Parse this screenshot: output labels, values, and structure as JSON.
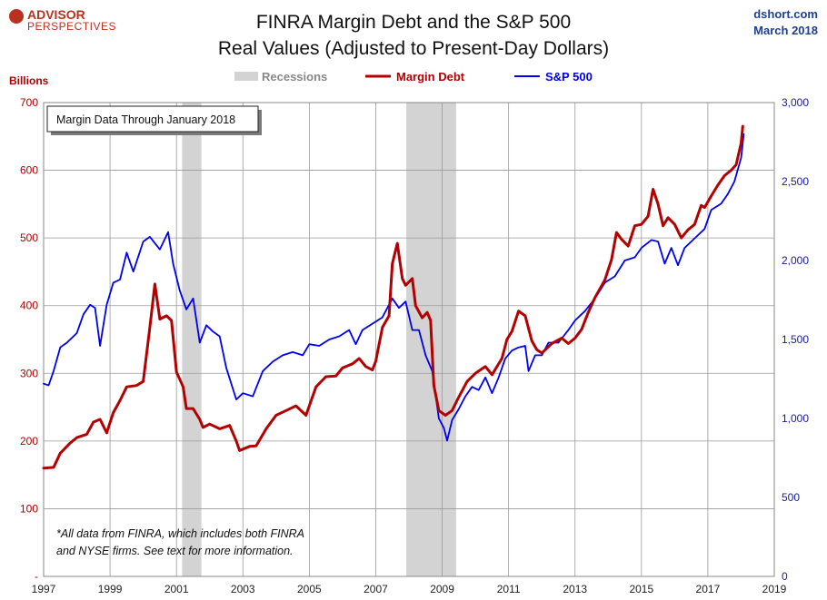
{
  "header": {
    "logo_line1": "ADVISOR",
    "logo_line2": "PERSPECTIVES",
    "title_line1": "FINRA Margin Debt and the S&P 500",
    "title_line2": "Real Values (Adjusted to Present-Day Dollars)",
    "source": "dshort.com",
    "date": "March 2018"
  },
  "legend": {
    "recessions": "Recessions",
    "margin_debt": "Margin Debt",
    "sp500": "S&P 500"
  },
  "annotations": {
    "box": "Margin Data Through January 2018",
    "footnote_line1": "*All data from FINRA, which includes both FINRA",
    "footnote_line2": "and NYSE firms. See text for more information."
  },
  "colors": {
    "margin_debt": "#b30000",
    "sp500": "#0000ee",
    "recession": "#d3d3d3",
    "grid": "#9a9a9a",
    "left_axis": "#b00000",
    "right_axis": "#1a1aa0"
  },
  "chart_data": {
    "type": "line",
    "title": "FINRA Margin Debt and the S&P 500",
    "subtitle": "Real Values (Adjusted to Present-Day Dollars)",
    "left_axis": {
      "label": "Billions",
      "ylim": [
        0,
        700
      ],
      "ticks": [
        0,
        100,
        200,
        300,
        400,
        500,
        600,
        700
      ],
      "tick_labels": [
        "-",
        "100",
        "200",
        "300",
        "400",
        "500",
        "600",
        "700"
      ]
    },
    "right_axis": {
      "ylim": [
        0,
        3000
      ],
      "ticks": [
        0,
        500,
        1000,
        1500,
        2000,
        2500,
        3000
      ],
      "tick_labels": [
        "0",
        "500",
        "1,000",
        "1,500",
        "2,000",
        "2,500",
        "3,000"
      ]
    },
    "x_axis": {
      "xlim": [
        1997.0,
        2019.0
      ],
      "ticks": [
        1997,
        1999,
        2001,
        2003,
        2005,
        2007,
        2009,
        2011,
        2013,
        2015,
        2017,
        2019
      ],
      "tick_labels": [
        "1997",
        "1999",
        "2001",
        "2003",
        "2005",
        "2007",
        "2009",
        "2011",
        "2013",
        "2015",
        "2017",
        "2019"
      ]
    },
    "grid": true,
    "legend_position": "top-center",
    "recessions": [
      [
        2001.17,
        2001.75
      ],
      [
        2007.92,
        2009.42
      ]
    ],
    "series": [
      {
        "name": "Margin Debt",
        "axis": "left",
        "points": [
          [
            1997.0,
            160
          ],
          [
            1997.3,
            161
          ],
          [
            1997.5,
            182
          ],
          [
            1997.8,
            197
          ],
          [
            1998.0,
            205
          ],
          [
            1998.3,
            210
          ],
          [
            1998.5,
            228
          ],
          [
            1998.7,
            232
          ],
          [
            1998.9,
            212
          ],
          [
            1999.1,
            242
          ],
          [
            1999.3,
            260
          ],
          [
            1999.5,
            280
          ],
          [
            1999.8,
            282
          ],
          [
            2000.0,
            288
          ],
          [
            2000.2,
            368
          ],
          [
            2000.35,
            432
          ],
          [
            2000.5,
            380
          ],
          [
            2000.7,
            385
          ],
          [
            2000.85,
            378
          ],
          [
            2001.0,
            302
          ],
          [
            2001.2,
            280
          ],
          [
            2001.3,
            248
          ],
          [
            2001.5,
            248
          ],
          [
            2001.7,
            232
          ],
          [
            2001.8,
            220
          ],
          [
            2002.0,
            225
          ],
          [
            2002.3,
            218
          ],
          [
            2002.6,
            223
          ],
          [
            2002.8,
            200
          ],
          [
            2002.9,
            186
          ],
          [
            2003.2,
            192
          ],
          [
            2003.4,
            193
          ],
          [
            2003.7,
            218
          ],
          [
            2004.0,
            238
          ],
          [
            2004.3,
            245
          ],
          [
            2004.6,
            252
          ],
          [
            2004.9,
            238
          ],
          [
            2005.2,
            280
          ],
          [
            2005.5,
            295
          ],
          [
            2005.8,
            296
          ],
          [
            2006.0,
            308
          ],
          [
            2006.3,
            314
          ],
          [
            2006.5,
            322
          ],
          [
            2006.7,
            310
          ],
          [
            2006.9,
            305
          ],
          [
            2007.0,
            318
          ],
          [
            2007.2,
            368
          ],
          [
            2007.4,
            385
          ],
          [
            2007.5,
            462
          ],
          [
            2007.65,
            492
          ],
          [
            2007.8,
            440
          ],
          [
            2007.9,
            430
          ],
          [
            2008.1,
            440
          ],
          [
            2008.2,
            400
          ],
          [
            2008.4,
            382
          ],
          [
            2008.55,
            390
          ],
          [
            2008.65,
            378
          ],
          [
            2008.75,
            282
          ],
          [
            2008.9,
            245
          ],
          [
            2009.1,
            238
          ],
          [
            2009.3,
            245
          ],
          [
            2009.5,
            265
          ],
          [
            2009.75,
            288
          ],
          [
            2010.0,
            300
          ],
          [
            2010.3,
            310
          ],
          [
            2010.5,
            298
          ],
          [
            2010.8,
            322
          ],
          [
            2010.95,
            350
          ],
          [
            2011.1,
            362
          ],
          [
            2011.3,
            392
          ],
          [
            2011.5,
            385
          ],
          [
            2011.7,
            348
          ],
          [
            2011.85,
            335
          ],
          [
            2012.0,
            330
          ],
          [
            2012.3,
            344
          ],
          [
            2012.6,
            352
          ],
          [
            2012.8,
            344
          ],
          [
            2013.0,
            352
          ],
          [
            2013.2,
            365
          ],
          [
            2013.4,
            390
          ],
          [
            2013.6,
            412
          ],
          [
            2013.9,
            438
          ],
          [
            2014.1,
            468
          ],
          [
            2014.25,
            508
          ],
          [
            2014.4,
            498
          ],
          [
            2014.6,
            488
          ],
          [
            2014.8,
            518
          ],
          [
            2015.0,
            520
          ],
          [
            2015.2,
            532
          ],
          [
            2015.35,
            572
          ],
          [
            2015.5,
            550
          ],
          [
            2015.65,
            518
          ],
          [
            2015.8,
            530
          ],
          [
            2016.0,
            520
          ],
          [
            2016.2,
            500
          ],
          [
            2016.4,
            512
          ],
          [
            2016.6,
            520
          ],
          [
            2016.8,
            548
          ],
          [
            2016.9,
            545
          ],
          [
            2017.1,
            562
          ],
          [
            2017.3,
            578
          ],
          [
            2017.5,
            592
          ],
          [
            2017.7,
            600
          ],
          [
            2017.85,
            608
          ],
          [
            2018.0,
            640
          ],
          [
            2018.05,
            665
          ]
        ]
      },
      {
        "name": "S&P 500",
        "axis": "right",
        "points": [
          [
            1997.0,
            1220
          ],
          [
            1997.15,
            1210
          ],
          [
            1997.3,
            1300
          ],
          [
            1997.5,
            1450
          ],
          [
            1997.7,
            1480
          ],
          [
            1998.0,
            1540
          ],
          [
            1998.2,
            1660
          ],
          [
            1998.4,
            1720
          ],
          [
            1998.55,
            1700
          ],
          [
            1998.7,
            1460
          ],
          [
            1998.9,
            1720
          ],
          [
            1999.1,
            1860
          ],
          [
            1999.3,
            1880
          ],
          [
            1999.5,
            2050
          ],
          [
            1999.7,
            1930
          ],
          [
            2000.0,
            2120
          ],
          [
            2000.2,
            2150
          ],
          [
            2000.5,
            2070
          ],
          [
            2000.75,
            2180
          ],
          [
            2000.9,
            1980
          ],
          [
            2001.1,
            1810
          ],
          [
            2001.3,
            1690
          ],
          [
            2001.5,
            1760
          ],
          [
            2001.7,
            1480
          ],
          [
            2001.9,
            1590
          ],
          [
            2002.1,
            1550
          ],
          [
            2002.3,
            1520
          ],
          [
            2002.5,
            1320
          ],
          [
            2002.8,
            1120
          ],
          [
            2003.0,
            1160
          ],
          [
            2003.3,
            1140
          ],
          [
            2003.6,
            1300
          ],
          [
            2003.9,
            1360
          ],
          [
            2004.2,
            1400
          ],
          [
            2004.5,
            1420
          ],
          [
            2004.8,
            1400
          ],
          [
            2005.0,
            1470
          ],
          [
            2005.3,
            1460
          ],
          [
            2005.6,
            1500
          ],
          [
            2005.9,
            1520
          ],
          [
            2006.2,
            1560
          ],
          [
            2006.4,
            1470
          ],
          [
            2006.6,
            1560
          ],
          [
            2006.9,
            1600
          ],
          [
            2007.2,
            1640
          ],
          [
            2007.5,
            1760
          ],
          [
            2007.7,
            1700
          ],
          [
            2007.9,
            1740
          ],
          [
            2008.1,
            1560
          ],
          [
            2008.3,
            1560
          ],
          [
            2008.5,
            1400
          ],
          [
            2008.7,
            1300
          ],
          [
            2008.9,
            1000
          ],
          [
            2009.05,
            940
          ],
          [
            2009.15,
            860
          ],
          [
            2009.3,
            990
          ],
          [
            2009.5,
            1060
          ],
          [
            2009.7,
            1140
          ],
          [
            2009.9,
            1200
          ],
          [
            2010.1,
            1180
          ],
          [
            2010.3,
            1260
          ],
          [
            2010.5,
            1160
          ],
          [
            2010.7,
            1260
          ],
          [
            2010.9,
            1380
          ],
          [
            2011.1,
            1430
          ],
          [
            2011.3,
            1450
          ],
          [
            2011.5,
            1460
          ],
          [
            2011.6,
            1300
          ],
          [
            2011.8,
            1400
          ],
          [
            2012.0,
            1400
          ],
          [
            2012.2,
            1480
          ],
          [
            2012.5,
            1480
          ],
          [
            2012.8,
            1560
          ],
          [
            2013.0,
            1620
          ],
          [
            2013.3,
            1680
          ],
          [
            2013.6,
            1760
          ],
          [
            2013.9,
            1860
          ],
          [
            2014.2,
            1900
          ],
          [
            2014.5,
            2000
          ],
          [
            2014.8,
            2020
          ],
          [
            2015.0,
            2080
          ],
          [
            2015.3,
            2130
          ],
          [
            2015.5,
            2120
          ],
          [
            2015.7,
            1980
          ],
          [
            2015.9,
            2080
          ],
          [
            2016.1,
            1970
          ],
          [
            2016.3,
            2080
          ],
          [
            2016.6,
            2140
          ],
          [
            2016.9,
            2200
          ],
          [
            2017.1,
            2320
          ],
          [
            2017.4,
            2360
          ],
          [
            2017.6,
            2420
          ],
          [
            2017.8,
            2500
          ],
          [
            2018.0,
            2650
          ],
          [
            2018.08,
            2800
          ]
        ]
      }
    ]
  }
}
